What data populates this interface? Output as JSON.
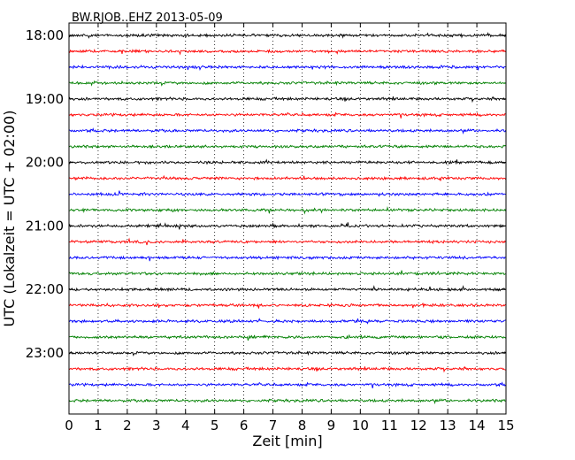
{
  "chart_data": {
    "type": "line",
    "title": "BW.RJOB..EHZ 2013-05-09",
    "xlabel": "Zeit  [min]",
    "ylabel": "UTC (Lokalzeit = UTC + 02:00)",
    "xlim": [
      0,
      15
    ],
    "x_ticks": [
      "0",
      "1",
      "2",
      "3",
      "4",
      "5",
      "6",
      "7",
      "8",
      "9",
      "10",
      "11",
      "12",
      "13",
      "14",
      "15"
    ],
    "y_ticks": [
      "18:00",
      "19:00",
      "20:00",
      "21:00",
      "22:00",
      "23:00"
    ],
    "grid": "vertical dotted",
    "trace_colors": [
      "#000000",
      "#ff0000",
      "#0000ff",
      "#008000"
    ],
    "series": [
      {
        "start": "18:00",
        "color": "#000000"
      },
      {
        "start": "18:15",
        "color": "#ff0000"
      },
      {
        "start": "18:30",
        "color": "#0000ff"
      },
      {
        "start": "18:45",
        "color": "#008000"
      },
      {
        "start": "19:00",
        "color": "#000000"
      },
      {
        "start": "19:15",
        "color": "#ff0000"
      },
      {
        "start": "19:30",
        "color": "#0000ff"
      },
      {
        "start": "19:45",
        "color": "#008000"
      },
      {
        "start": "20:00",
        "color": "#000000"
      },
      {
        "start": "20:15",
        "color": "#ff0000"
      },
      {
        "start": "20:30",
        "color": "#0000ff"
      },
      {
        "start": "20:45",
        "color": "#008000"
      },
      {
        "start": "21:00",
        "color": "#000000"
      },
      {
        "start": "21:15",
        "color": "#ff0000"
      },
      {
        "start": "21:30",
        "color": "#0000ff"
      },
      {
        "start": "21:45",
        "color": "#008000"
      },
      {
        "start": "22:00",
        "color": "#000000"
      },
      {
        "start": "22:15",
        "color": "#ff0000"
      },
      {
        "start": "22:30",
        "color": "#0000ff"
      },
      {
        "start": "22:45",
        "color": "#008000"
      },
      {
        "start": "23:00",
        "color": "#000000"
      },
      {
        "start": "23:15",
        "color": "#ff0000"
      },
      {
        "start": "23:30",
        "color": "#0000ff"
      },
      {
        "start": "23:45",
        "color": "#008000"
      }
    ]
  }
}
